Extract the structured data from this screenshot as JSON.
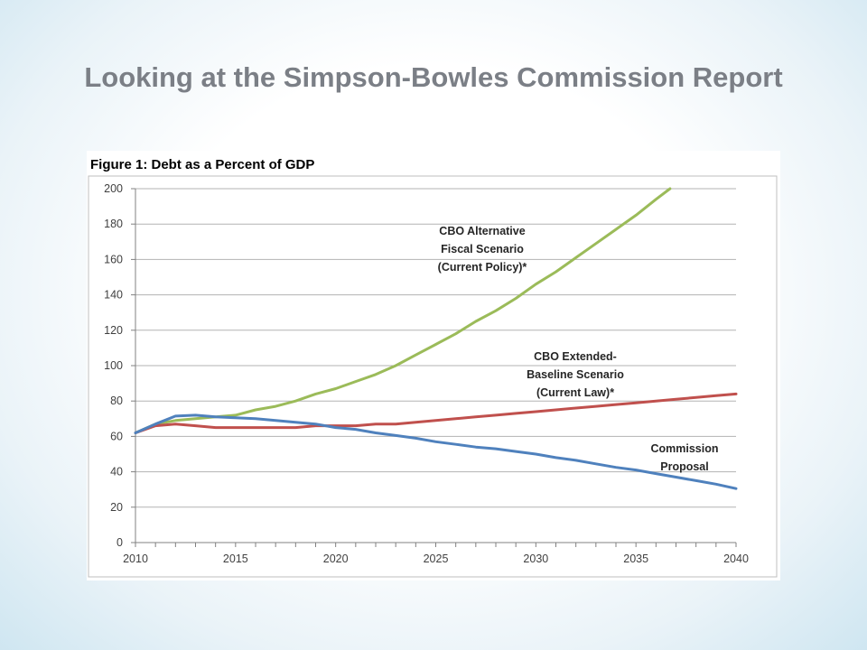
{
  "slide": {
    "title": "Looking at the Simpson-Bowles Commission Report"
  },
  "chart_data": {
    "type": "line",
    "title": "Figure 1: Debt as a Percent of GDP",
    "xlim": [
      2010,
      2040
    ],
    "ylim": [
      0,
      200
    ],
    "xticks": [
      2010,
      2015,
      2020,
      2025,
      2030,
      2035,
      2040
    ],
    "yticks": [
      0,
      20,
      40,
      60,
      80,
      100,
      120,
      140,
      160,
      180,
      200
    ],
    "grid": "horizontal",
    "legend": "none",
    "series": [
      {
        "color": "#9bbb59",
        "annotation": [
          "CBO Alternative",
          "Fiscal Scenario",
          "(Current Policy)*"
        ],
        "points": [
          [
            2010,
            62
          ],
          [
            2011,
            67
          ],
          [
            2012,
            69
          ],
          [
            2013,
            70
          ],
          [
            2014,
            71
          ],
          [
            2015,
            72
          ],
          [
            2016,
            75
          ],
          [
            2017,
            77
          ],
          [
            2018,
            80
          ],
          [
            2019,
            84
          ],
          [
            2020,
            87
          ],
          [
            2021,
            91
          ],
          [
            2022,
            95
          ],
          [
            2023,
            100
          ],
          [
            2024,
            106
          ],
          [
            2025,
            112
          ],
          [
            2026,
            118
          ],
          [
            2027,
            125
          ],
          [
            2028,
            131
          ],
          [
            2029,
            138
          ],
          [
            2030,
            146
          ],
          [
            2031,
            153
          ],
          [
            2032,
            161
          ],
          [
            2033,
            169
          ],
          [
            2034,
            177
          ],
          [
            2035,
            185
          ],
          [
            2036,
            194
          ],
          [
            2036.7,
            200
          ]
        ]
      },
      {
        "color": "#c0504d",
        "annotation": [
          "CBO Extended-",
          "Baseline Scenario",
          "(Current Law)*"
        ],
        "points": [
          [
            2010,
            62
          ],
          [
            2011,
            66
          ],
          [
            2012,
            67
          ],
          [
            2013,
            66
          ],
          [
            2014,
            65
          ],
          [
            2015,
            65
          ],
          [
            2016,
            65
          ],
          [
            2017,
            65
          ],
          [
            2018,
            65
          ],
          [
            2019,
            66
          ],
          [
            2020,
            66
          ],
          [
            2021,
            66
          ],
          [
            2022,
            67
          ],
          [
            2023,
            67
          ],
          [
            2024,
            68
          ],
          [
            2025,
            69
          ],
          [
            2026,
            70
          ],
          [
            2027,
            71
          ],
          [
            2028,
            72
          ],
          [
            2029,
            73
          ],
          [
            2030,
            74
          ],
          [
            2031,
            75
          ],
          [
            2032,
            76
          ],
          [
            2033,
            77
          ],
          [
            2034,
            78
          ],
          [
            2035,
            79
          ],
          [
            2036,
            80
          ],
          [
            2037,
            81
          ],
          [
            2038,
            82
          ],
          [
            2039,
            83
          ],
          [
            2040,
            84
          ]
        ]
      },
      {
        "color": "#4f81bd",
        "annotation": [
          "Commission",
          "Proposal"
        ],
        "points": [
          [
            2010,
            62
          ],
          [
            2011,
            67
          ],
          [
            2012,
            71.5
          ],
          [
            2013,
            72
          ],
          [
            2014,
            71
          ],
          [
            2015,
            70.5
          ],
          [
            2016,
            70
          ],
          [
            2017,
            69
          ],
          [
            2018,
            68
          ],
          [
            2019,
            67
          ],
          [
            2020,
            65
          ],
          [
            2021,
            64
          ],
          [
            2022,
            62
          ],
          [
            2023,
            60.5
          ],
          [
            2024,
            59
          ],
          [
            2025,
            57
          ],
          [
            2026,
            55.5
          ],
          [
            2027,
            54
          ],
          [
            2028,
            53
          ],
          [
            2029,
            51.5
          ],
          [
            2030,
            50
          ],
          [
            2031,
            48
          ],
          [
            2032,
            46.5
          ],
          [
            2033,
            44.5
          ],
          [
            2034,
            42.5
          ],
          [
            2035,
            41
          ],
          [
            2036,
            39
          ],
          [
            2037,
            37
          ],
          [
            2038,
            35
          ],
          [
            2039,
            33
          ],
          [
            2040,
            30.5
          ]
        ]
      }
    ]
  }
}
